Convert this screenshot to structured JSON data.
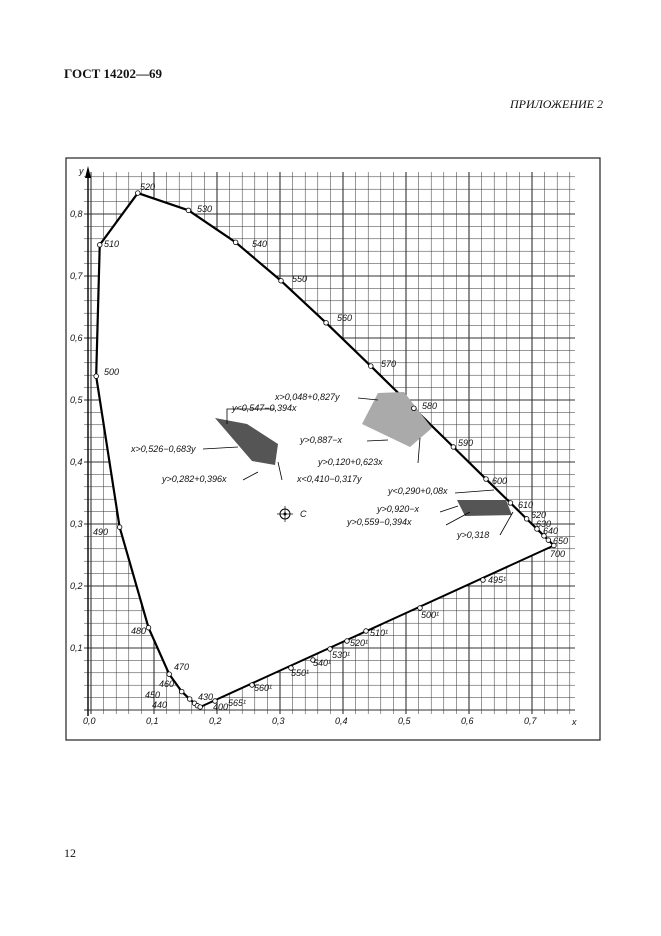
{
  "header": {
    "title": "ГОСТ 14202—69",
    "appendix": "ПРИЛОЖЕНИЕ 2"
  },
  "figure": {
    "x_axis_label": "x",
    "y_axis_label": "y",
    "x_tick_labels": [
      "0,0",
      "0,1",
      "0,2",
      "0,3",
      "0,4",
      "0,5",
      "0,6",
      "0,7"
    ],
    "y_tick_labels": [
      "0,1",
      "0,2",
      "0,3",
      "0,4",
      "0,5",
      "0,6",
      "0,7",
      "0,8"
    ],
    "locus_labels": [
      "520",
      "530",
      "540",
      "550",
      "560",
      "570",
      "580",
      "590",
      "600",
      "610",
      "620",
      "630",
      "640",
      "650",
      "700",
      "510",
      "500",
      "490",
      "480",
      "470",
      "460",
      "450",
      "440",
      "430",
      "400"
    ],
    "purple_labels": [
      "565¹",
      "560¹",
      "550¹",
      "540¹",
      "530¹",
      "520¹",
      "510¹",
      "500¹",
      "495¹"
    ],
    "white_point": "C",
    "formulas": [
      "x>0,048+0,827y",
      "y<0,547−0,394x",
      "x>0,526−0,683y",
      "y>0,887−x",
      "y>0,120+0,623x",
      "y>0,282+0,396x",
      "x<0,410−0,317y",
      "y<0,290+0,08x",
      "y>0,920−x",
      "y>0,559−0,394x",
      "y>0,318"
    ]
  },
  "footer": {
    "page_number": "12"
  }
}
